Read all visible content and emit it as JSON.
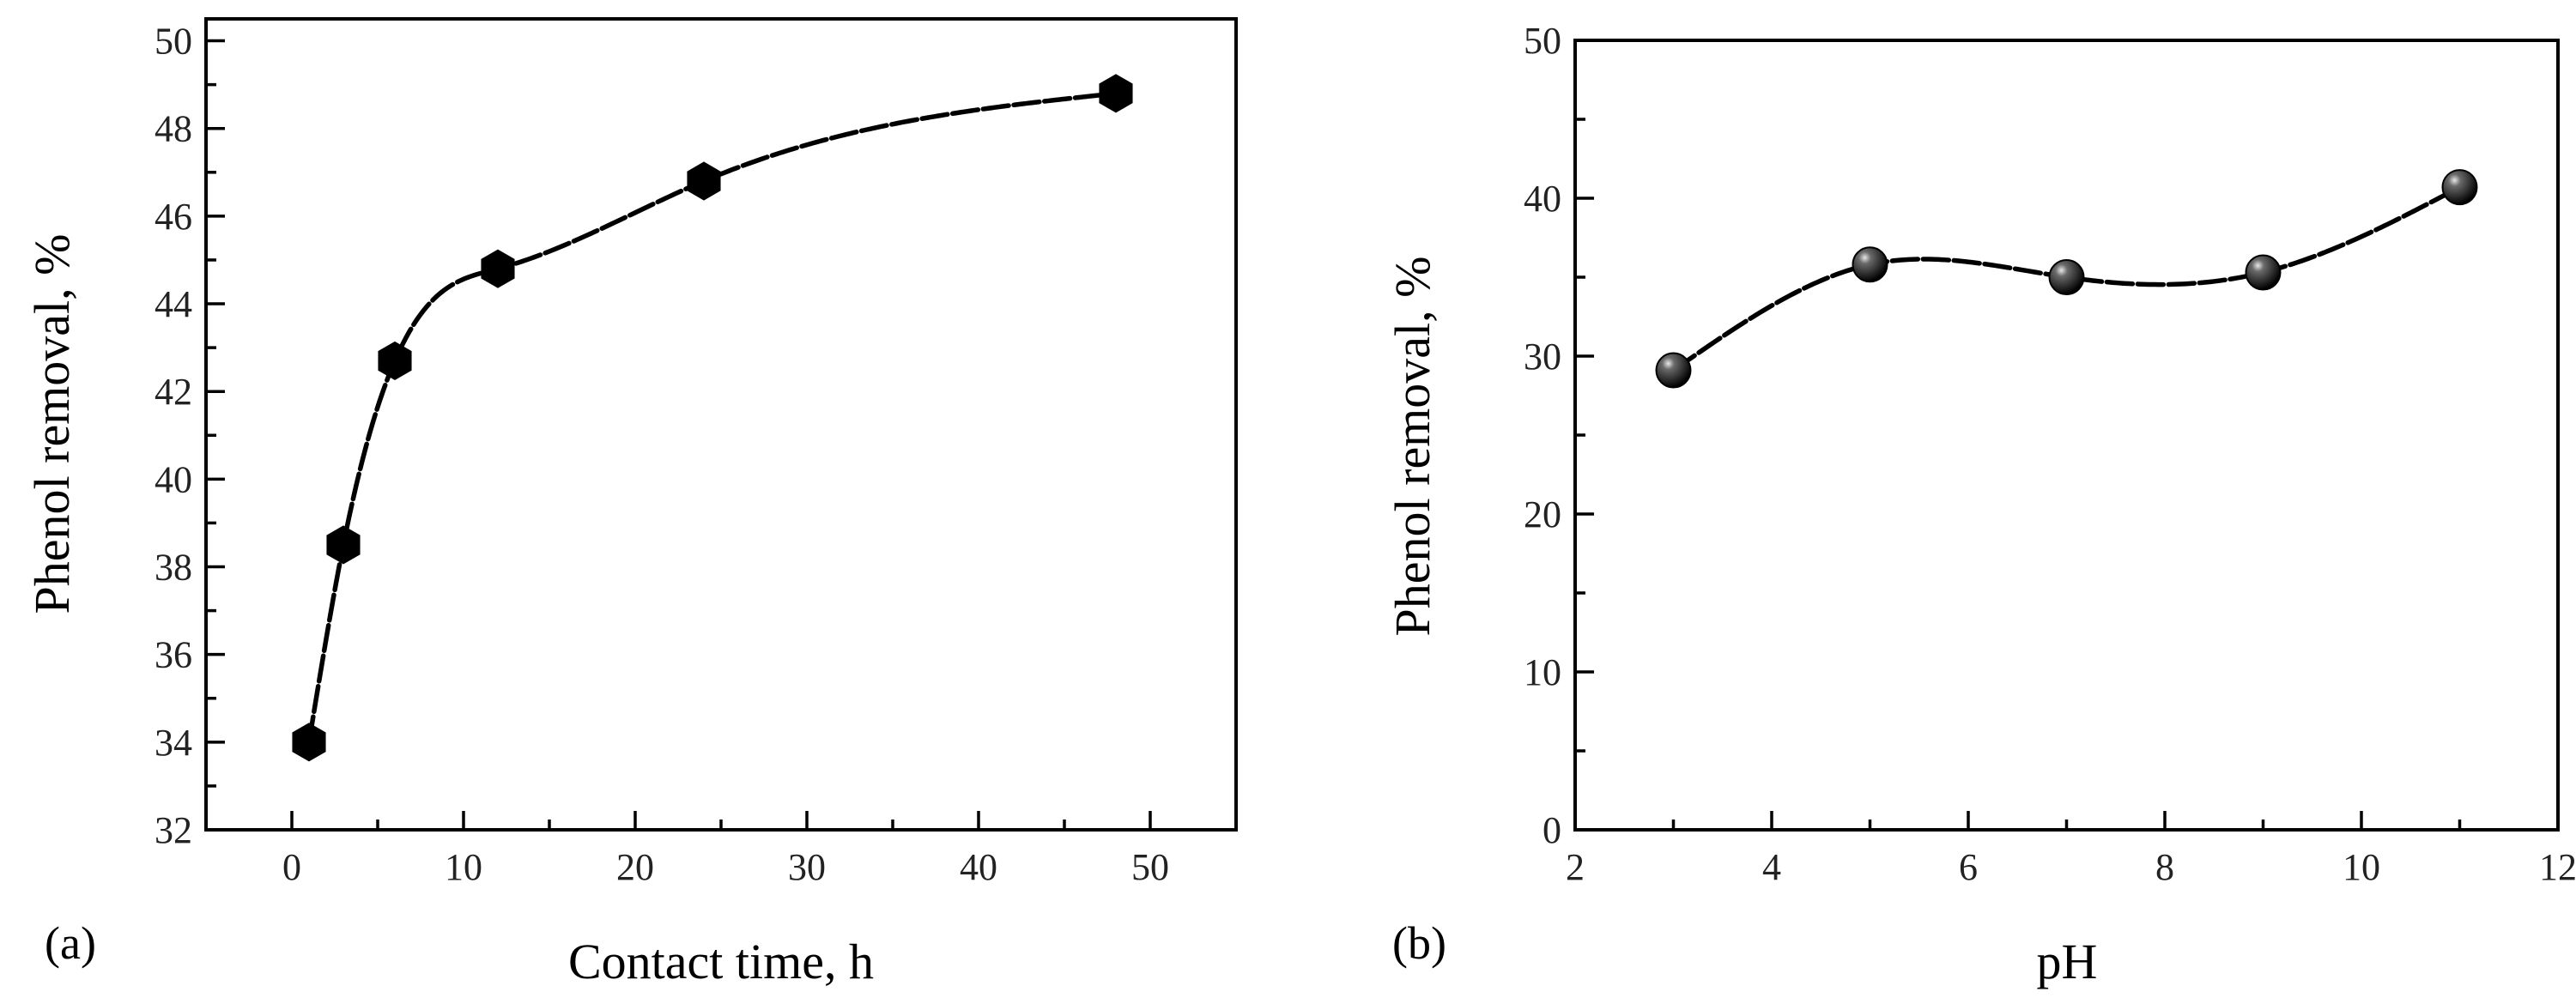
{
  "chart_data": [
    {
      "panel_label": "(a)",
      "type": "line",
      "marker": "hexagon",
      "xlabel": "Contact time, h",
      "ylabel": "Phenol removal, %",
      "xlim": [
        -5,
        55
      ],
      "ylim": [
        32,
        50.5
      ],
      "xticks": [
        0,
        10,
        20,
        30,
        40,
        50
      ],
      "yticks": [
        32,
        34,
        36,
        38,
        40,
        42,
        44,
        46,
        48,
        50
      ],
      "grid": false,
      "series": [
        {
          "x": [
            1,
            3,
            6,
            12,
            24,
            48
          ],
          "y": [
            34.0,
            38.5,
            42.7,
            44.8,
            46.8,
            48.8
          ]
        }
      ]
    },
    {
      "panel_label": "(b)",
      "type": "line",
      "marker": "sphere",
      "xlabel": "pH",
      "ylabel": "Phenol removal, %",
      "xlim": [
        2,
        12
      ],
      "ylim": [
        0,
        50
      ],
      "xticks": [
        2,
        4,
        6,
        8,
        10,
        12
      ],
      "yticks": [
        0,
        10,
        20,
        30,
        40,
        50
      ],
      "grid": false,
      "series": [
        {
          "x": [
            3,
            5,
            7,
            9,
            11
          ],
          "y": [
            29.1,
            35.8,
            35.0,
            35.3,
            40.7
          ]
        }
      ]
    }
  ]
}
